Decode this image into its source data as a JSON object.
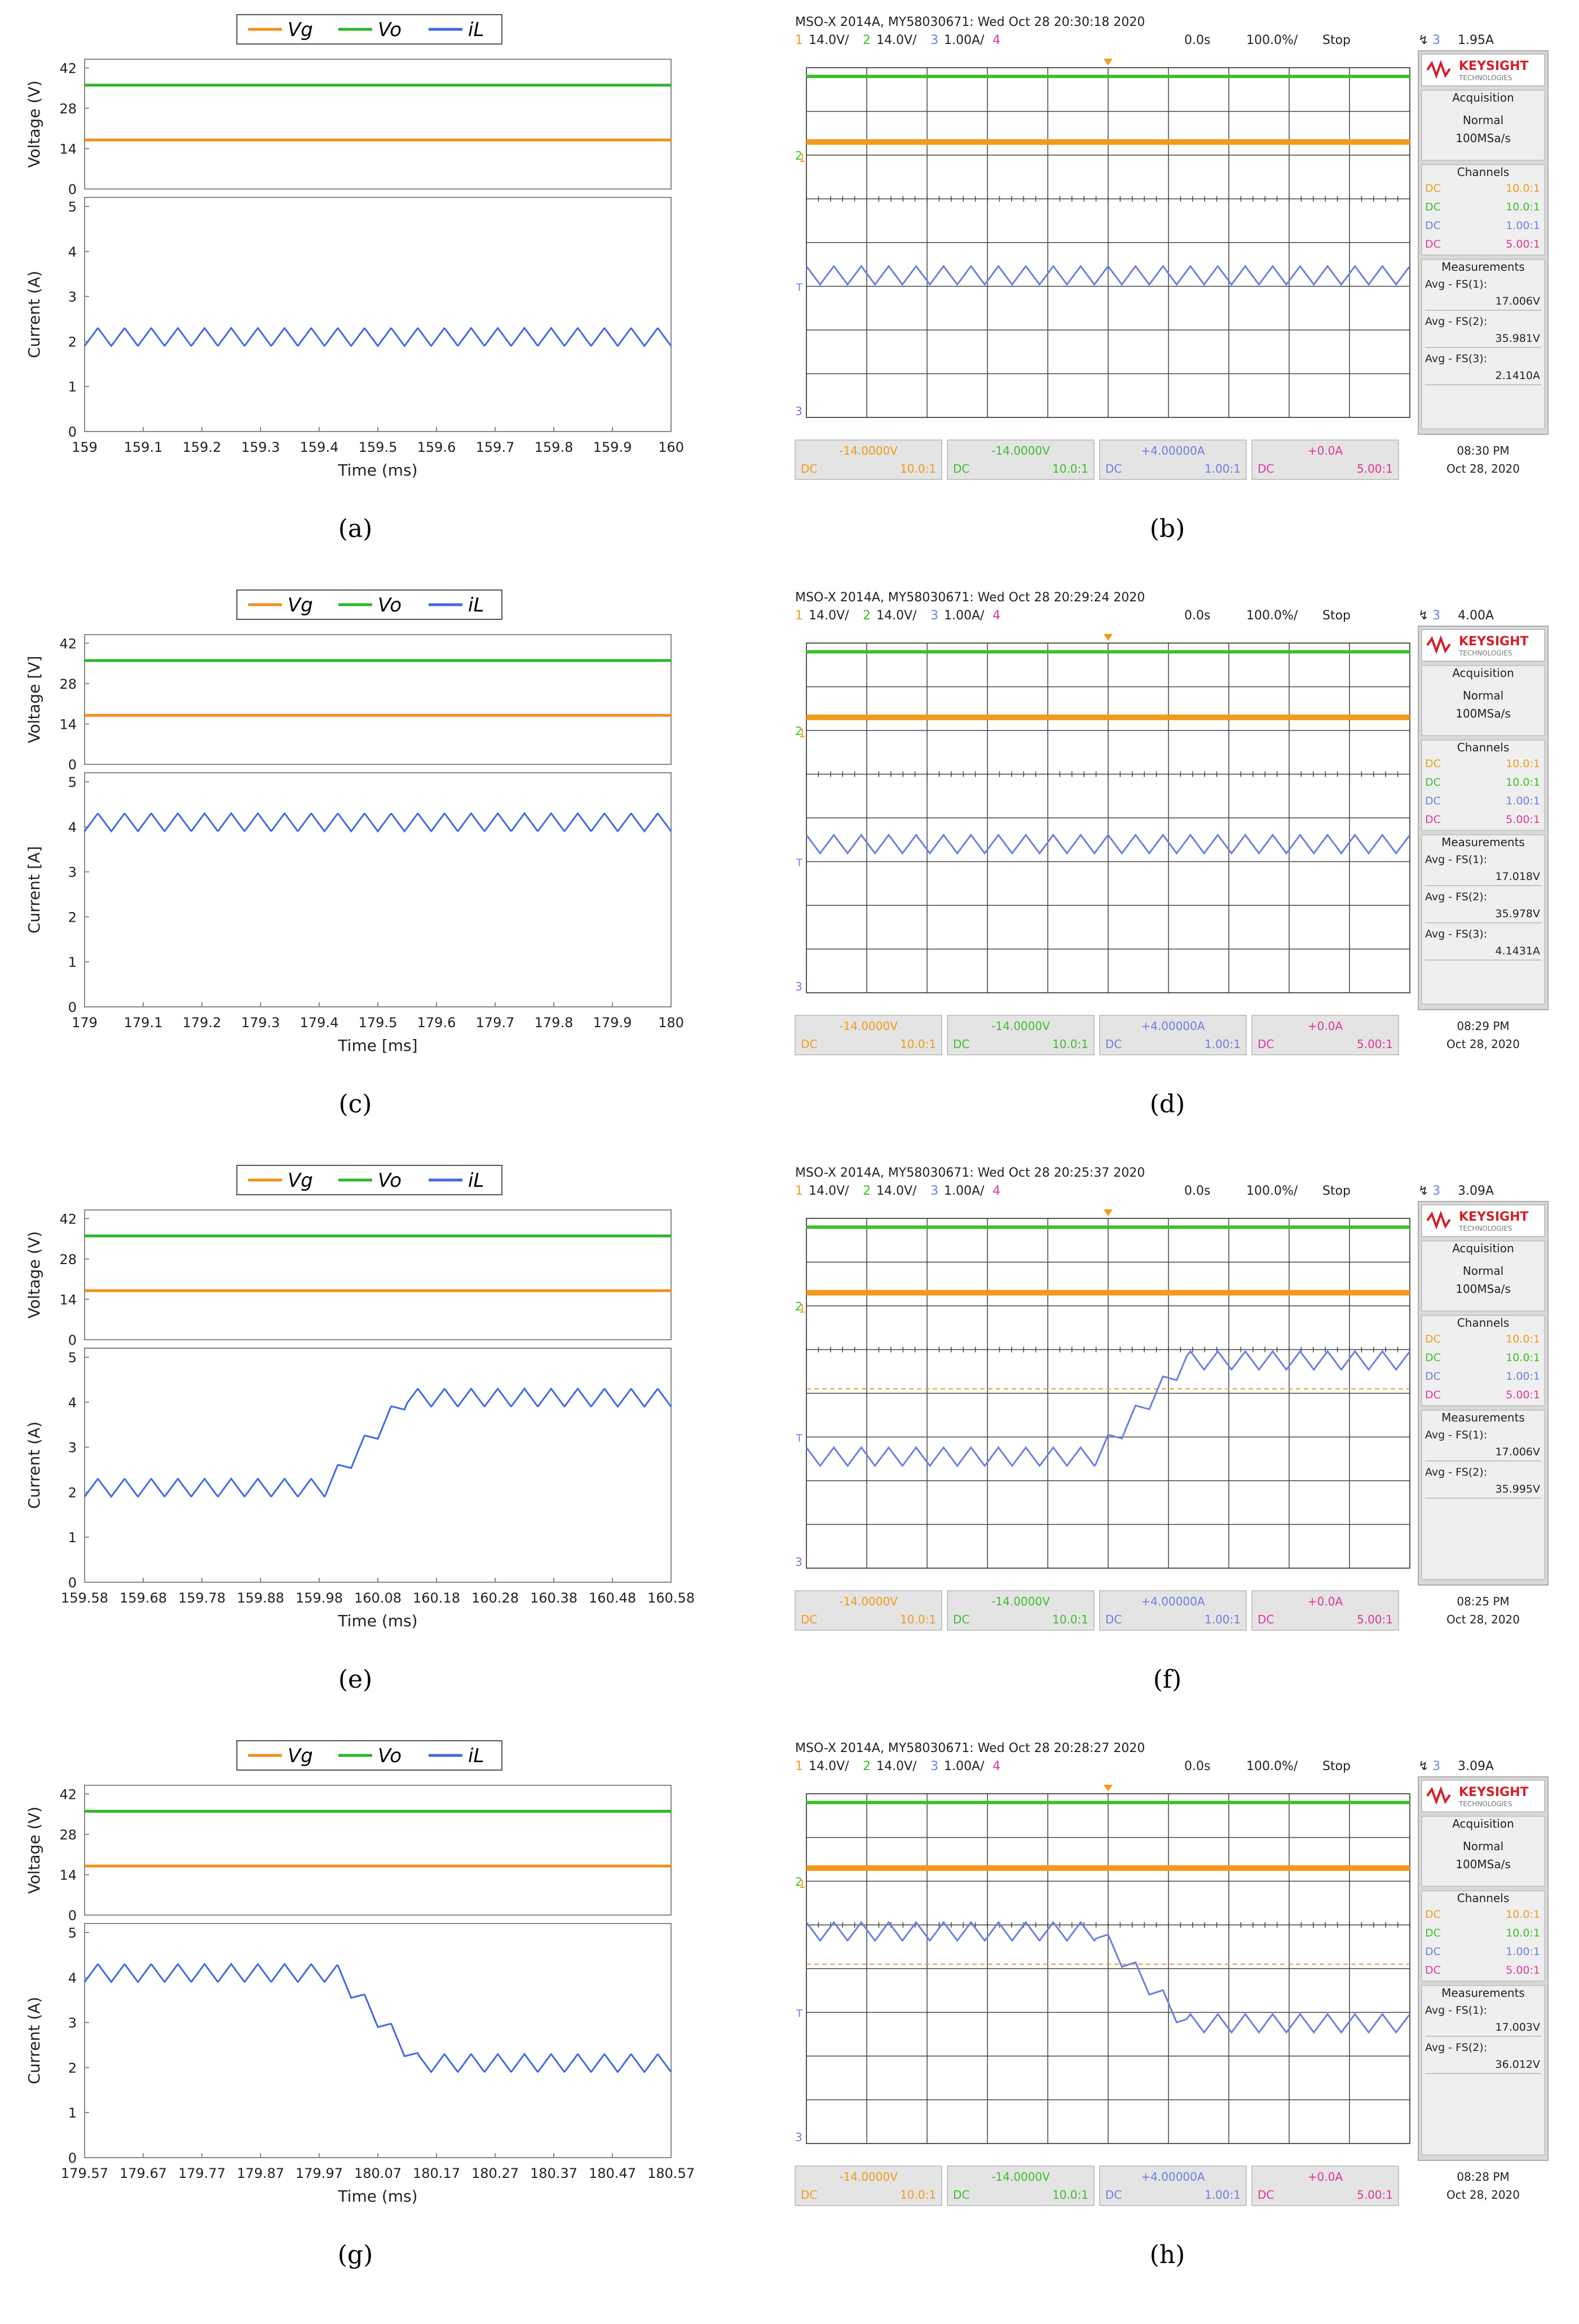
{
  "colors": {
    "vg": "#f0901e",
    "vo": "#2bb52b",
    "il": "#4169e1",
    "scope_ch1": "#f29a1d",
    "scope_ch2": "#3bbf2a",
    "scope_ch3": "#6b7fe0",
    "scope_ch4": "#e0359a",
    "keysight_red": "#d3202a"
  },
  "legend": {
    "vg": "Vg",
    "vo": "Vo",
    "il": "iL"
  },
  "captions": {
    "a": "(a)",
    "b": "(b)",
    "c": "(c)",
    "d": "(d)",
    "e": "(e)",
    "f": "(f)",
    "g": "(g)",
    "h": "(h)"
  },
  "chart_data": [
    {
      "id": "a",
      "type": "line",
      "voltage": {
        "ylabel": "Voltage (V)",
        "yticks": [
          "0",
          "14",
          "28",
          "42"
        ],
        "ylim": [
          0,
          45
        ],
        "series": [
          {
            "name": "Vg",
            "value": 17
          },
          {
            "name": "Vo",
            "value": 36
          }
        ]
      },
      "current": {
        "ylabel": "Current (A)",
        "yticks": [
          "0",
          "1",
          "2",
          "3",
          "4",
          "5"
        ],
        "ylim": [
          0,
          5.2
        ],
        "series": [
          {
            "name": "iL",
            "low": 1.9,
            "high": 2.3
          }
        ]
      },
      "xlabel": "Time (ms)",
      "xticks": [
        "159",
        "159.1",
        "159.2",
        "159.3",
        "159.4",
        "159.5",
        "159.6",
        "159.7",
        "159.8",
        "159.9",
        "160"
      ],
      "xlim": [
        159,
        160
      ],
      "periods": 22,
      "profile": "flat"
    },
    {
      "id": "c",
      "type": "line",
      "voltage": {
        "ylabel": "Voltage [V]",
        "yticks": [
          "0",
          "14",
          "28",
          "42"
        ],
        "ylim": [
          0,
          45
        ],
        "series": [
          {
            "name": "Vg",
            "value": 17
          },
          {
            "name": "Vo",
            "value": 36
          }
        ]
      },
      "current": {
        "ylabel": "Current [A]",
        "yticks": [
          "0",
          "1",
          "2",
          "3",
          "4",
          "5"
        ],
        "ylim": [
          0,
          5.2
        ],
        "series": [
          {
            "name": "iL",
            "low": 3.9,
            "high": 4.3
          }
        ]
      },
      "xlabel": "Time [ms]",
      "xticks": [
        "179",
        "179.1",
        "179.2",
        "179.3",
        "179.4",
        "179.5",
        "179.6",
        "179.7",
        "179.8",
        "179.9",
        "180"
      ],
      "xlim": [
        179,
        180
      ],
      "periods": 22,
      "profile": "flat"
    },
    {
      "id": "e",
      "type": "line",
      "voltage": {
        "ylabel": "Voltage (V)",
        "yticks": [
          "0",
          "14",
          "28",
          "42"
        ],
        "ylim": [
          0,
          45
        ],
        "series": [
          {
            "name": "Vg",
            "value": 17
          },
          {
            "name": "Vo",
            "value": 36
          }
        ]
      },
      "current": {
        "ylabel": "Current (A)",
        "yticks": [
          "0",
          "1",
          "2",
          "3",
          "4",
          "5"
        ],
        "ylim": [
          0,
          5.2
        ],
        "series": [
          {
            "name": "iL",
            "low_before": 1.9,
            "high_before": 2.3,
            "low_after": 3.9,
            "high_after": 4.3
          }
        ]
      },
      "xlabel": "Time (ms)",
      "xticks": [
        "159.58",
        "159.68",
        "159.78",
        "159.88",
        "159.98",
        "160.08",
        "160.18",
        "160.28",
        "160.38",
        "160.48",
        "160.58"
      ],
      "xlim": [
        159.58,
        160.58
      ],
      "periods": 22,
      "profile": "step_up",
      "transition": [
        159.99,
        160.13
      ]
    },
    {
      "id": "g",
      "type": "line",
      "voltage": {
        "ylabel": "Voltage (V)",
        "yticks": [
          "0",
          "14",
          "28",
          "42"
        ],
        "ylim": [
          0,
          45
        ],
        "series": [
          {
            "name": "Vg",
            "value": 17
          },
          {
            "name": "Vo",
            "value": 36
          }
        ]
      },
      "current": {
        "ylabel": "Current (A)",
        "yticks": [
          "0",
          "1",
          "2",
          "3",
          "4",
          "5"
        ],
        "ylim": [
          0,
          5.2
        ],
        "series": [
          {
            "name": "iL",
            "low_before": 3.9,
            "high_before": 4.3,
            "low_after": 1.9,
            "high_after": 2.3
          }
        ]
      },
      "xlabel": "Time (ms)",
      "xticks": [
        "179.57",
        "179.67",
        "179.77",
        "179.87",
        "179.97",
        "180.07",
        "180.17",
        "180.27",
        "180.37",
        "180.47",
        "180.57"
      ],
      "xlim": [
        179.57,
        180.57
      ],
      "periods": 22,
      "profile": "step_down",
      "transition": [
        180.0,
        180.14
      ]
    }
  ],
  "scopes": [
    {
      "id": "b",
      "header": "MSO-X 2014A, MY58030671: Wed Oct 28 20:30:18 2020",
      "trigger_level": "1.95A",
      "timestamp_time": "08:30 PM",
      "timestamp_date": "Oct 28, 2020",
      "measurements": [
        {
          "label": "Avg - FS(1):",
          "value": "17.006V"
        },
        {
          "label": "Avg - FS(2):",
          "value": "35.981V"
        },
        {
          "label": "Avg - FS(3):",
          "value": "2.1410A"
        }
      ],
      "current_profile": "low",
      "trigger_line": false
    },
    {
      "id": "d",
      "header": "MSO-X 2014A, MY58030671: Wed Oct 28 20:29:24 2020",
      "trigger_level": "4.00A",
      "timestamp_time": "08:29 PM",
      "timestamp_date": "Oct 28, 2020",
      "measurements": [
        {
          "label": "Avg - FS(1):",
          "value": "17.018V"
        },
        {
          "label": "Avg - FS(2):",
          "value": "35.978V"
        },
        {
          "label": "Avg - FS(3):",
          "value": "4.1431A"
        }
      ],
      "current_profile": "high",
      "trigger_line": false
    },
    {
      "id": "f",
      "header": "MSO-X 2014A, MY58030671: Wed Oct 28 20:25:37 2020",
      "trigger_level": "3.09A",
      "timestamp_time": "08:25 PM",
      "timestamp_date": "Oct 28, 2020",
      "measurements": [
        {
          "label": "Avg - FS(1):",
          "value": "17.006V"
        },
        {
          "label": "Avg - FS(2):",
          "value": "35.995V"
        }
      ],
      "current_profile": "step_up",
      "trigger_line": true
    },
    {
      "id": "h",
      "header": "MSO-X 2014A, MY58030671: Wed Oct 28 20:28:27 2020",
      "trigger_level": "3.09A",
      "timestamp_time": "08:28 PM",
      "timestamp_date": "Oct 28, 2020",
      "measurements": [
        {
          "label": "Avg - FS(1):",
          "value": "17.003V"
        },
        {
          "label": "Avg - FS(2):",
          "value": "36.012V"
        }
      ],
      "current_profile": "step_down",
      "trigger_line": true
    }
  ],
  "scope_common": {
    "channel_bar": [
      {
        "num": "1",
        "scale": "14.0V/"
      },
      {
        "num": "2",
        "scale": "14.0V/"
      },
      {
        "num": "3",
        "scale": "1.00A/"
      },
      {
        "num": "4",
        "scale": ""
      }
    ],
    "time_offset": "0.0s",
    "time_scale": "100.0%/",
    "run_state": "Stop",
    "trigger_channel": "3",
    "brand": "KEYSIGHT",
    "brand_sub": "TECHNOLOGIES",
    "acquisition_title": "Acquisition",
    "acquisition_mode": "Normal",
    "acquisition_rate": "100MSa/s",
    "channels_title": "Channels",
    "channels": [
      {
        "coupling": "DC",
        "ratio": "10.0:1"
      },
      {
        "coupling": "DC",
        "ratio": "10.0:1"
      },
      {
        "coupling": "DC",
        "ratio": "1.00:1"
      },
      {
        "coupling": "DC",
        "ratio": "5.00:1"
      }
    ],
    "measurements_title": "Measurements",
    "bottom": [
      {
        "offset": "-14.0000V",
        "coupling": "DC",
        "ratio": "10.0:1"
      },
      {
        "offset": "-14.0000V",
        "coupling": "DC",
        "ratio": "10.0:1"
      },
      {
        "offset": "+4.00000A",
        "coupling": "DC",
        "ratio": "1.00:1"
      },
      {
        "offset": "+0.0A",
        "coupling": "DC",
        "ratio": "5.00:1"
      }
    ],
    "marker_1": "1",
    "marker_2": "2",
    "marker_3": "3",
    "marker_t": "T"
  }
}
